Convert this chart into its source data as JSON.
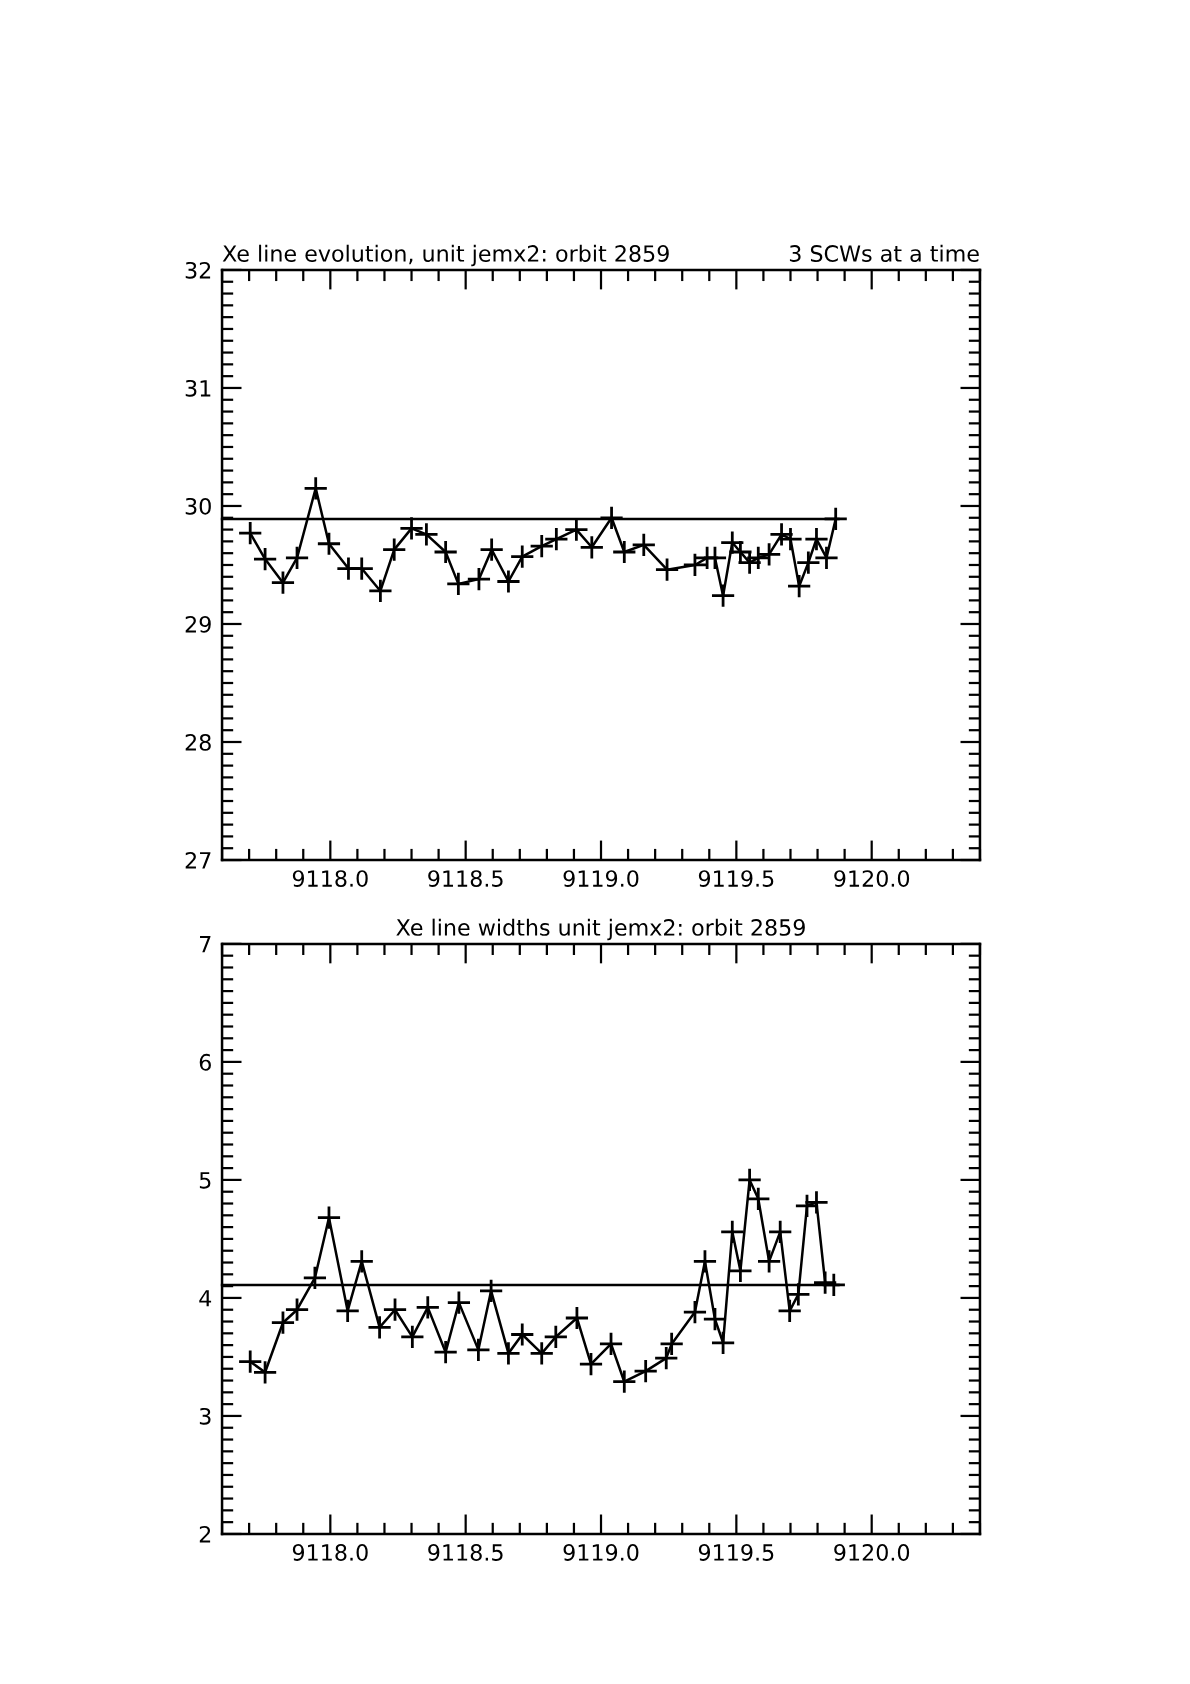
{
  "chart_data": [
    {
      "type": "line",
      "title": "Xe line evolution, unit jemx2: orbit 2859",
      "subtitle": "3 SCWs at a time",
      "xlim": [
        9117.6,
        9120.4
      ],
      "xticks": [
        {
          "value": 9118.0,
          "label": "9118.0"
        },
        {
          "value": 9118.5,
          "label": "9118.5"
        },
        {
          "value": 9119.0,
          "label": "9119.0"
        },
        {
          "value": 9119.5,
          "label": "9119.5"
        },
        {
          "value": 9120.0,
          "label": "9120.0"
        }
      ],
      "ylim": [
        27,
        32
      ],
      "yticks": [
        27,
        28,
        29,
        30,
        31,
        32
      ],
      "series": [
        {
          "color": "#000000",
          "marker": "cross",
          "x": [
            9117.704,
            9117.759,
            9117.825,
            9117.877,
            9117.946,
            9117.995,
            9118.067,
            9118.116,
            9118.185,
            9118.236,
            9118.3,
            9118.355,
            9118.426,
            9118.473,
            9118.549,
            9118.596,
            9118.658,
            9118.709,
            9118.781,
            9118.835,
            9118.909,
            9118.966,
            9119.039,
            9119.086,
            9119.158,
            9119.244,
            9119.347,
            9119.392,
            9119.421,
            9119.451,
            9119.485,
            9119.515,
            9119.549,
            9119.581,
            9119.621,
            9119.667,
            9119.7,
            9119.732,
            9119.766,
            9119.796,
            9119.833,
            9119.867
          ],
          "values": [
            29.77,
            29.55,
            29.35,
            29.56,
            30.15,
            29.68,
            29.47,
            29.47,
            29.28,
            29.63,
            29.81,
            29.76,
            29.61,
            29.34,
            29.38,
            29.63,
            29.36,
            29.57,
            29.66,
            29.72,
            29.8,
            29.65,
            29.9,
            29.61,
            29.67,
            29.46,
            29.5,
            29.56,
            29.56,
            29.24,
            29.69,
            29.61,
            29.52,
            29.56,
            29.59,
            29.76,
            29.72,
            29.32,
            29.52,
            29.72,
            29.56,
            29.89
          ]
        },
        {
          "color": "#000000",
          "marker": "none",
          "x": [
            9117.6,
            9119.877
          ],
          "values": [
            29.89,
            29.89
          ]
        }
      ]
    },
    {
      "type": "line",
      "title": "Xe line widths unit jemx2: orbit 2859",
      "xlim": [
        9117.6,
        9120.4
      ],
      "xticks": [
        {
          "value": 9118.0,
          "label": "9118.0"
        },
        {
          "value": 9118.5,
          "label": "9118.5"
        },
        {
          "value": 9119.0,
          "label": "9119.0"
        },
        {
          "value": 9119.5,
          "label": "9119.5"
        },
        {
          "value": 9120.0,
          "label": "9120.0"
        }
      ],
      "ylim": [
        2,
        7
      ],
      "yticks": [
        2,
        3,
        4,
        5,
        6,
        7
      ],
      "series": [
        {
          "color": "#000000",
          "marker": "cross",
          "x": [
            9117.704,
            9117.759,
            9117.825,
            9117.877,
            9117.943,
            9117.995,
            9118.064,
            9118.116,
            9118.182,
            9118.239,
            9118.303,
            9118.36,
            9118.426,
            9118.475,
            9118.547,
            9118.594,
            9118.658,
            9118.709,
            9118.781,
            9118.833,
            9118.911,
            9118.963,
            9119.037,
            9119.086,
            9119.165,
            9119.241,
            9119.261,
            9119.347,
            9119.384,
            9119.421,
            9119.451,
            9119.485,
            9119.515,
            9119.549,
            9119.581,
            9119.621,
            9119.662,
            9119.697,
            9119.729,
            9119.761,
            9119.796,
            9119.828,
            9119.86
          ],
          "values": [
            3.46,
            3.37,
            3.79,
            3.9,
            4.17,
            4.68,
            3.89,
            4.31,
            3.75,
            3.9,
            3.67,
            3.92,
            3.54,
            3.96,
            3.56,
            4.06,
            3.53,
            3.69,
            3.53,
            3.67,
            3.83,
            3.44,
            3.61,
            3.29,
            3.38,
            3.49,
            3.61,
            3.88,
            4.31,
            3.82,
            3.62,
            4.56,
            4.23,
            5.0,
            4.84,
            4.31,
            4.56,
            3.89,
            4.03,
            4.78,
            4.81,
            4.13,
            4.11
          ]
        },
        {
          "color": "#000000",
          "marker": "none",
          "x": [
            9117.6,
            9119.877
          ],
          "values": [
            4.11,
            4.11
          ]
        }
      ]
    }
  ]
}
